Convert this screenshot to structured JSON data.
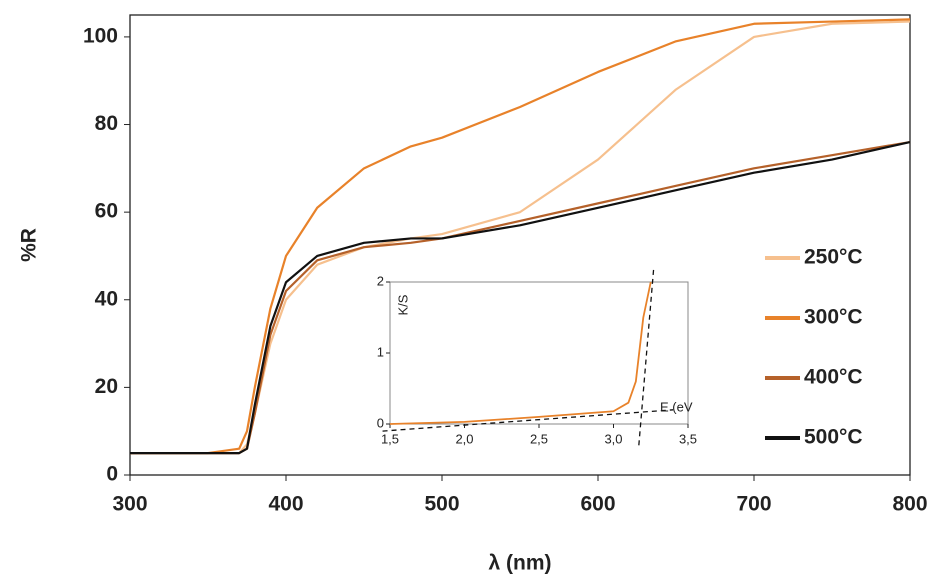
{
  "chart_data": [
    {
      "type": "line",
      "x_label": "λ (nm)",
      "y_label": "%R",
      "x": [
        300,
        350,
        370,
        375,
        380,
        390,
        400,
        420,
        450,
        480,
        500,
        550,
        600,
        650,
        700,
        750,
        800
      ],
      "xlim": [
        300,
        800
      ],
      "xticks": [
        300,
        400,
        500,
        600,
        700,
        800
      ],
      "ylim": [
        0,
        105
      ],
      "yticks": [
        0,
        20,
        40,
        60,
        80,
        100
      ],
      "legend": "right",
      "series": [
        {
          "name": "250°C",
          "color": "#f6c08e",
          "values": [
            5,
            5,
            5,
            7,
            14,
            30,
            40,
            48,
            52,
            54,
            55,
            60,
            72,
            88,
            100,
            103,
            103.5
          ]
        },
        {
          "name": "300°C",
          "color": "#e8822a",
          "values": [
            5,
            5,
            6,
            10,
            20,
            38,
            50,
            61,
            70,
            75,
            77,
            84,
            92,
            99,
            103,
            103.5,
            104
          ]
        },
        {
          "name": "400°C",
          "color": "#b5612a",
          "values": [
            5,
            5,
            5,
            6,
            14,
            32,
            42,
            49,
            52,
            53,
            54,
            58,
            62,
            66,
            70,
            73,
            76
          ]
        },
        {
          "name": "500°C",
          "color": "#111111",
          "values": [
            5,
            5,
            5,
            6,
            16,
            34,
            44,
            50,
            53,
            54,
            54,
            57,
            61,
            65,
            69,
            72,
            76
          ]
        }
      ]
    },
    {
      "type": "line",
      "x_label": "E (eV",
      "y_label": "K/S",
      "xlim": [
        1.5,
        3.5
      ],
      "xticks": [
        {
          "value": 1.5,
          "label": "1,5"
        },
        {
          "value": 2.0,
          "label": "2,0"
        },
        {
          "value": 2.5,
          "label": "2,5"
        },
        {
          "value": 3.0,
          "label": "3,0"
        },
        {
          "value": 3.5,
          "label": "3,5"
        }
      ],
      "ylim": [
        0,
        2
      ],
      "yticks": [
        0,
        1,
        2
      ],
      "series": [
        {
          "color": "#e8822a",
          "x": [
            1.5,
            2.0,
            2.5,
            3.0,
            3.1,
            3.15,
            3.2,
            3.25
          ],
          "values": [
            0,
            0.03,
            0.1,
            0.18,
            0.3,
            0.6,
            1.5,
            2.0
          ]
        },
        {
          "color": "#111111",
          "dashed": true,
          "x": [
            1.45,
            3.4
          ],
          "values": [
            -0.1,
            0.2
          ]
        },
        {
          "color": "#111111",
          "dashed": true,
          "x": [
            3.17,
            3.27
          ],
          "values": [
            -0.3,
            2.2
          ]
        }
      ]
    }
  ]
}
